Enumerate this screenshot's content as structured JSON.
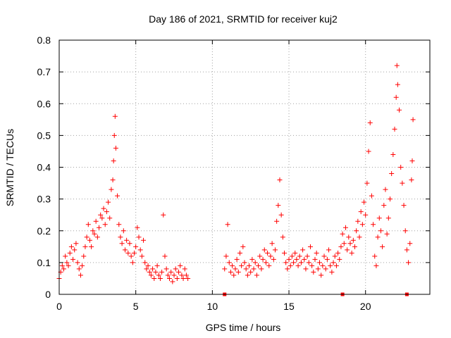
{
  "chart_data": {
    "type": "scatter",
    "title": "Day 186 of 2021, SRMTID for receiver kuj2",
    "xlabel": "GPS time / hours",
    "ylabel": "SRMTID / TECUs",
    "xlim": [
      0,
      24.2
    ],
    "ylim": [
      0,
      0.8
    ],
    "x_ticks": [
      0,
      5,
      10,
      15,
      20
    ],
    "x_tick_labels": [
      "0",
      "5",
      "10",
      "15",
      "20"
    ],
    "y_ticks": [
      0,
      0.1,
      0.2,
      0.3,
      0.4,
      0.5,
      0.6,
      0.7,
      0.8
    ],
    "y_tick_labels": [
      "0",
      "0.1",
      "0.2",
      "0.3",
      "0.4",
      "0.5",
      "0.6",
      "0.7",
      "0.8"
    ],
    "grid": true,
    "marker": "plus",
    "color": "#ff0000",
    "series": [
      {
        "name": "SRMTID",
        "points": [
          [
            0.0,
            0.05
          ],
          [
            0.1,
            0.07
          ],
          [
            0.2,
            0.09
          ],
          [
            0.3,
            0.08
          ],
          [
            0.4,
            0.12
          ],
          [
            0.5,
            0.1
          ],
          [
            0.6,
            0.09
          ],
          [
            0.7,
            0.13
          ],
          [
            0.8,
            0.15
          ],
          [
            0.9,
            0.11
          ],
          [
            1.0,
            0.14
          ],
          [
            1.1,
            0.16
          ],
          [
            1.2,
            0.1
          ],
          [
            1.3,
            0.08
          ],
          [
            1.4,
            0.06
          ],
          [
            1.5,
            0.09
          ],
          [
            1.6,
            0.12
          ],
          [
            1.7,
            0.15
          ],
          [
            1.8,
            0.18
          ],
          [
            1.9,
            0.22
          ],
          [
            2.0,
            0.17
          ],
          [
            2.1,
            0.15
          ],
          [
            2.2,
            0.2
          ],
          [
            2.3,
            0.19
          ],
          [
            2.4,
            0.23
          ],
          [
            2.5,
            0.18
          ],
          [
            2.6,
            0.21
          ],
          [
            2.7,
            0.25
          ],
          [
            2.8,
            0.24
          ],
          [
            2.9,
            0.27
          ],
          [
            3.0,
            0.22
          ],
          [
            3.1,
            0.26
          ],
          [
            3.2,
            0.29
          ],
          [
            3.3,
            0.24
          ],
          [
            3.4,
            0.33
          ],
          [
            3.5,
            0.36
          ],
          [
            3.55,
            0.42
          ],
          [
            3.6,
            0.5
          ],
          [
            3.65,
            0.56
          ],
          [
            3.7,
            0.46
          ],
          [
            3.8,
            0.31
          ],
          [
            3.9,
            0.22
          ],
          [
            4.0,
            0.18
          ],
          [
            4.1,
            0.16
          ],
          [
            4.2,
            0.2
          ],
          [
            4.3,
            0.14
          ],
          [
            4.4,
            0.17
          ],
          [
            4.5,
            0.13
          ],
          [
            4.6,
            0.16
          ],
          [
            4.7,
            0.12
          ],
          [
            4.8,
            0.1
          ],
          [
            4.9,
            0.13
          ],
          [
            5.0,
            0.15
          ],
          [
            5.1,
            0.21
          ],
          [
            5.2,
            0.18
          ],
          [
            5.3,
            0.14
          ],
          [
            5.4,
            0.12
          ],
          [
            5.5,
            0.17
          ],
          [
            5.6,
            0.1
          ],
          [
            5.7,
            0.08
          ],
          [
            5.8,
            0.09
          ],
          [
            5.9,
            0.07
          ],
          [
            6.0,
            0.06
          ],
          [
            6.1,
            0.08
          ],
          [
            6.2,
            0.05
          ],
          [
            6.3,
            0.07
          ],
          [
            6.4,
            0.09
          ],
          [
            6.5,
            0.06
          ],
          [
            6.6,
            0.05
          ],
          [
            6.7,
            0.07
          ],
          [
            6.8,
            0.25
          ],
          [
            6.9,
            0.12
          ],
          [
            7.0,
            0.08
          ],
          [
            7.1,
            0.06
          ],
          [
            7.2,
            0.05
          ],
          [
            7.3,
            0.07
          ],
          [
            7.4,
            0.04
          ],
          [
            7.5,
            0.06
          ],
          [
            7.6,
            0.08
          ],
          [
            7.7,
            0.05
          ],
          [
            7.8,
            0.07
          ],
          [
            7.9,
            0.09
          ],
          [
            8.0,
            0.06
          ],
          [
            8.1,
            0.05
          ],
          [
            8.2,
            0.08
          ],
          [
            8.3,
            0.06
          ],
          [
            8.4,
            0.05
          ],
          [
            10.8,
            0.08
          ],
          [
            10.9,
            0.12
          ],
          [
            11.0,
            0.22
          ],
          [
            11.1,
            0.1
          ],
          [
            11.2,
            0.07
          ],
          [
            11.3,
            0.09
          ],
          [
            11.4,
            0.06
          ],
          [
            11.5,
            0.08
          ],
          [
            11.6,
            0.11
          ],
          [
            11.7,
            0.07
          ],
          [
            11.8,
            0.13
          ],
          [
            11.9,
            0.09
          ],
          [
            12.0,
            0.15
          ],
          [
            12.1,
            0.1
          ],
          [
            12.2,
            0.08
          ],
          [
            12.3,
            0.06
          ],
          [
            12.4,
            0.09
          ],
          [
            12.5,
            0.07
          ],
          [
            12.6,
            0.11
          ],
          [
            12.7,
            0.08
          ],
          [
            12.8,
            0.1
          ],
          [
            12.9,
            0.06
          ],
          [
            13.0,
            0.09
          ],
          [
            13.1,
            0.12
          ],
          [
            13.2,
            0.08
          ],
          [
            13.3,
            0.11
          ],
          [
            13.4,
            0.14
          ],
          [
            13.5,
            0.1
          ],
          [
            13.6,
            0.13
          ],
          [
            13.7,
            0.09
          ],
          [
            13.8,
            0.12
          ],
          [
            13.9,
            0.16
          ],
          [
            14.0,
            0.11
          ],
          [
            14.1,
            0.14
          ],
          [
            14.2,
            0.23
          ],
          [
            14.3,
            0.28
          ],
          [
            14.4,
            0.36
          ],
          [
            14.5,
            0.25
          ],
          [
            14.6,
            0.18
          ],
          [
            14.7,
            0.13
          ],
          [
            14.8,
            0.1
          ],
          [
            14.9,
            0.08
          ],
          [
            15.0,
            0.11
          ],
          [
            15.1,
            0.09
          ],
          [
            15.2,
            0.12
          ],
          [
            15.3,
            0.1
          ],
          [
            15.4,
            0.13
          ],
          [
            15.5,
            0.11
          ],
          [
            15.6,
            0.09
          ],
          [
            15.7,
            0.12
          ],
          [
            15.8,
            0.1
          ],
          [
            15.9,
            0.14
          ],
          [
            16.0,
            0.11
          ],
          [
            16.1,
            0.08
          ],
          [
            16.2,
            0.12
          ],
          [
            16.3,
            0.1
          ],
          [
            16.4,
            0.15
          ],
          [
            16.5,
            0.09
          ],
          [
            16.6,
            0.07
          ],
          [
            16.7,
            0.11
          ],
          [
            16.8,
            0.13
          ],
          [
            16.9,
            0.08
          ],
          [
            17.0,
            0.1
          ],
          [
            17.1,
            0.06
          ],
          [
            17.2,
            0.09
          ],
          [
            17.3,
            0.12
          ],
          [
            17.4,
            0.08
          ],
          [
            17.5,
            0.11
          ],
          [
            17.6,
            0.14
          ],
          [
            17.7,
            0.09
          ],
          [
            17.8,
            0.07
          ],
          [
            17.9,
            0.1
          ],
          [
            18.0,
            0.12
          ],
          [
            18.1,
            0.09
          ],
          [
            18.2,
            0.13
          ],
          [
            18.3,
            0.11
          ],
          [
            18.4,
            0.15
          ],
          [
            18.5,
            0.19
          ],
          [
            18.6,
            0.16
          ],
          [
            18.7,
            0.21
          ],
          [
            18.8,
            0.14
          ],
          [
            18.9,
            0.18
          ],
          [
            19.0,
            0.16
          ],
          [
            19.1,
            0.13
          ],
          [
            19.2,
            0.17
          ],
          [
            19.3,
            0.15
          ],
          [
            19.4,
            0.2
          ],
          [
            19.5,
            0.23
          ],
          [
            19.6,
            0.18
          ],
          [
            19.7,
            0.26
          ],
          [
            19.8,
            0.22
          ],
          [
            19.9,
            0.29
          ],
          [
            20.0,
            0.25
          ],
          [
            20.1,
            0.35
          ],
          [
            20.2,
            0.45
          ],
          [
            20.3,
            0.54
          ],
          [
            20.4,
            0.31
          ],
          [
            20.5,
            0.22
          ],
          [
            20.6,
            0.12
          ],
          [
            20.7,
            0.09
          ],
          [
            20.8,
            0.18
          ],
          [
            20.9,
            0.24
          ],
          [
            21.0,
            0.2
          ],
          [
            21.1,
            0.15
          ],
          [
            21.2,
            0.28
          ],
          [
            21.3,
            0.33
          ],
          [
            21.4,
            0.19
          ],
          [
            21.5,
            0.24
          ],
          [
            21.6,
            0.3
          ],
          [
            21.7,
            0.38
          ],
          [
            21.8,
            0.44
          ],
          [
            21.9,
            0.52
          ],
          [
            22.0,
            0.62
          ],
          [
            22.05,
            0.72
          ],
          [
            22.1,
            0.66
          ],
          [
            22.2,
            0.58
          ],
          [
            22.3,
            0.4
          ],
          [
            22.4,
            0.35
          ],
          [
            22.5,
            0.28
          ],
          [
            22.6,
            0.2
          ],
          [
            22.7,
            0.14
          ],
          [
            22.8,
            0.1
          ],
          [
            22.9,
            0.16
          ],
          [
            23.0,
            0.36
          ],
          [
            23.05,
            0.42
          ],
          [
            23.1,
            0.55
          ]
        ]
      },
      {
        "name": "data gap markers",
        "marker": "square",
        "points": [
          [
            10.8,
            0
          ],
          [
            18.5,
            0
          ],
          [
            22.7,
            0
          ]
        ]
      }
    ]
  }
}
